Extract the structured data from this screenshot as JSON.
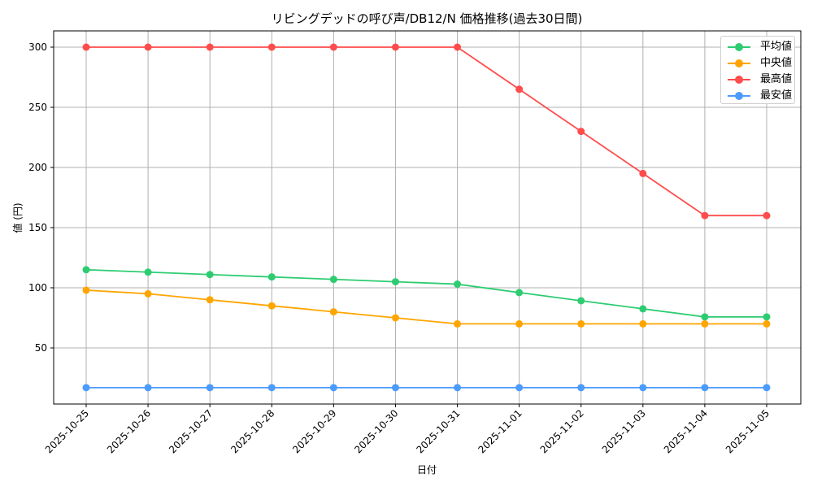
{
  "chart_data": {
    "type": "line",
    "title": "リビングデッドの呼び声/DB12/N 価格推移(過去30日間)",
    "xlabel": "日付",
    "ylabel": "値 (円)",
    "categories": [
      "2025-10-25",
      "2025-10-26",
      "2025-10-27",
      "2025-10-28",
      "2025-10-29",
      "2025-10-30",
      "2025-10-31",
      "2025-11-01",
      "2025-11-02",
      "2025-11-03",
      "2025-11-04",
      "2025-11-05"
    ],
    "series": [
      {
        "name": "平均値",
        "color": "#2ecc71",
        "values": [
          115,
          113,
          111,
          109,
          107,
          105,
          103,
          96,
          89.2,
          82.5,
          75.8,
          75.8
        ]
      },
      {
        "name": "中央値",
        "color": "#ffa500",
        "values": [
          98,
          95,
          90,
          85,
          80,
          75,
          70,
          70,
          70,
          70,
          70,
          70
        ]
      },
      {
        "name": "最高値",
        "color": "#ff4c4c",
        "values": [
          300,
          300,
          300,
          300,
          300,
          300,
          300,
          265,
          230,
          195,
          160,
          160
        ]
      },
      {
        "name": "最安値",
        "color": "#4c9bff",
        "values": [
          17,
          17,
          17,
          17,
          17,
          17,
          17,
          17,
          17,
          17,
          17,
          17
        ]
      }
    ],
    "yticks": [
      50,
      100,
      150,
      200,
      250,
      300
    ],
    "ylim": [
      3,
      314
    ],
    "grid": true,
    "legend_position": "upper right",
    "marker": "circle"
  }
}
